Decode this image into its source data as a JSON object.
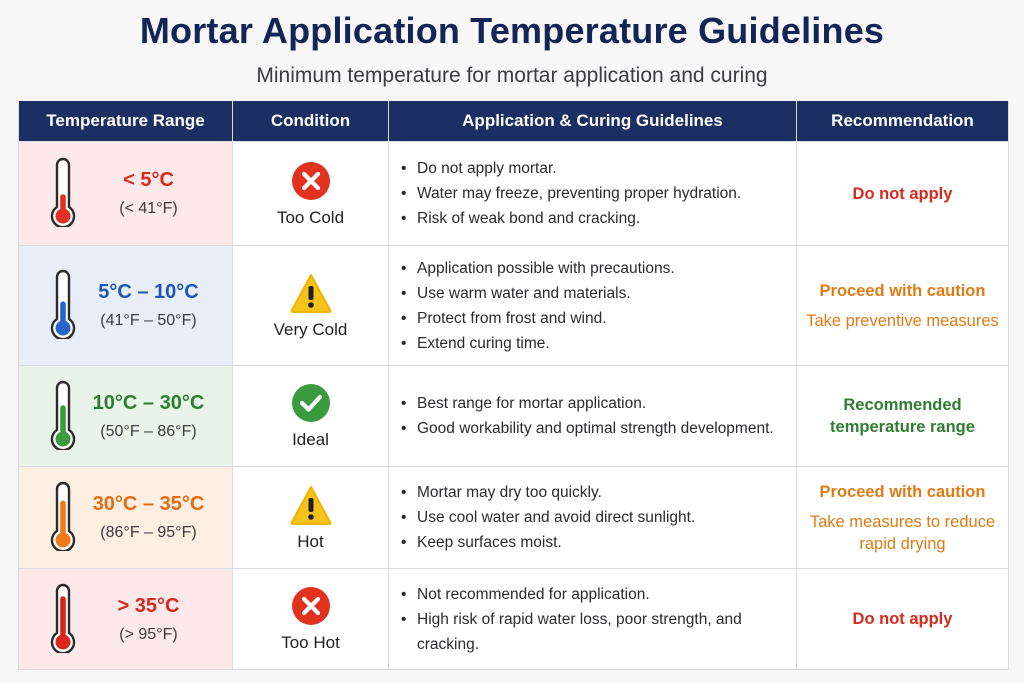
{
  "title": "Mortar Application Temperature Guidelines",
  "subtitle": "Minimum temperature for mortar application and curing",
  "headers": {
    "range": "Temperature Range",
    "condition": "Condition",
    "guidelines": "Application & Curing Guidelines",
    "recommendation": "Recommendation"
  },
  "rows": [
    {
      "range_c": "< 5°C",
      "range_f": "(< 41°F)",
      "condition": "Too Cold",
      "icon": "x-circle-icon",
      "color": "#d62a1e",
      "bg": "#fde9e9",
      "thermo_color": "#e0301e",
      "thermo_level": 0.35,
      "guidelines": [
        "Do not apply mortar.",
        "Water may freeze, preventing proper hydration.",
        "Risk of weak bond and cracking."
      ],
      "rec_main": "Do not apply",
      "rec_sub": ""
    },
    {
      "range_c": "5°C – 10°C",
      "range_f": "(41°F – 50°F)",
      "condition": "Very Cold",
      "icon": "warning-triangle-icon",
      "color": "#1f57b3",
      "bg": "#e8eef8",
      "thermo_color": "#2565c9",
      "thermo_level": 0.45,
      "guidelines": [
        "Application possible with precautions.",
        "Use warm water and materials.",
        "Protect from frost and wind.",
        "Extend curing time."
      ],
      "rec_main": "Proceed with caution",
      "rec_sub": "Take preventive measures",
      "rec_color": "#e07b14"
    },
    {
      "range_c": "10°C – 30°C",
      "range_f": "(50°F – 86°F)",
      "condition": "Ideal",
      "icon": "check-circle-icon",
      "color": "#2e7d32",
      "bg": "#e9f4e8",
      "thermo_color": "#3c9a3f",
      "thermo_level": 0.6,
      "guidelines": [
        "Best range for mortar application.",
        "Good workability and optimal strength development."
      ],
      "rec_main": "Recommended temperature range",
      "rec_sub": "",
      "rec_color": "#2e7d32"
    },
    {
      "range_c": "30°C – 35°C",
      "range_f": "(86°F – 95°F)",
      "condition": "Hot",
      "icon": "warning-triangle-icon",
      "color": "#e36d12",
      "bg": "#fdeee2",
      "thermo_color": "#f07a1a",
      "thermo_level": 0.72,
      "guidelines": [
        "Mortar may dry too quickly.",
        "Use cool water and avoid direct sunlight.",
        "Keep surfaces moist."
      ],
      "rec_main": "Proceed with caution",
      "rec_sub": "Take measures to reduce rapid drying",
      "rec_color": "#e07b14"
    },
    {
      "range_c": "> 35°C",
      "range_f": "(> 95°F)",
      "condition": "Too Hot",
      "icon": "x-circle-icon",
      "color": "#d62a1e",
      "bg": "#fde9e9",
      "thermo_color": "#d9261c",
      "thermo_level": 0.85,
      "guidelines": [
        "Not recommended for application.",
        "High risk of rapid water loss, poor strength, and cracking."
      ],
      "rec_main": "Do not apply",
      "rec_sub": "",
      "rec_color": "#d62a1e"
    }
  ]
}
